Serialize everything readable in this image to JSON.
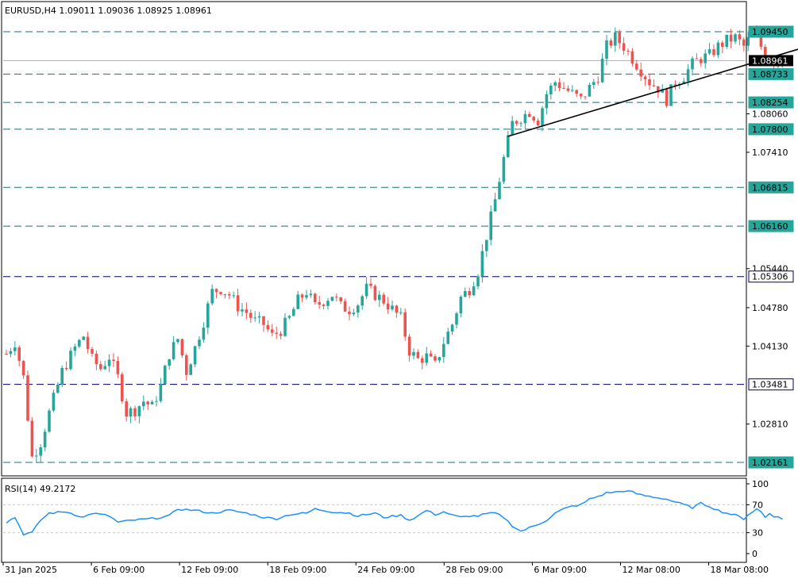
{
  "header": {
    "title": "EURUSD,H4  1.09011 1.09036 1.08925 1.08961"
  },
  "rsi_header": {
    "title": "RSI(14) 49.2172"
  },
  "colors": {
    "bull": "#26a69a",
    "bear": "#ef5350",
    "level_line": "#1a6e84",
    "support_line": "#000066",
    "badge_fill": "#26a69a",
    "current_fill": "#000000",
    "rsi_line": "#1e90ff"
  },
  "chart_data": [
    {
      "type": "candlestick",
      "symbol": "EURUSD",
      "timeframe": "H4",
      "ohlc_last": {
        "open": 1.09011,
        "high": 1.09036,
        "low": 1.08925,
        "close": 1.08961
      },
      "ylim": [
        1.0195,
        1.1
      ],
      "y_ticks": [
        "1.09450",
        "1.08961",
        "1.08733",
        "1.08254",
        "1.08060",
        "1.07800",
        "1.07410",
        "1.06815",
        "1.06160",
        "1.05440",
        "1.05306",
        "1.04780",
        "1.04130",
        "1.03481",
        "1.02810",
        "1.02161"
      ],
      "x_ticks": [
        "31 Jan 2025",
        "6 Feb 09:00",
        "12 Feb 09:00",
        "18 Feb 09:00",
        "24 Feb 09:00",
        "28 Feb 09:00",
        "6 Mar 09:00",
        "12 Mar 08:00",
        "18 Mar 08:00"
      ],
      "levels": [
        {
          "price": 1.0945,
          "label": "1.09450",
          "style": "level"
        },
        {
          "price": 1.08733,
          "label": "1.08733",
          "style": "level"
        },
        {
          "price": 1.08254,
          "label": "1.08254",
          "style": "level"
        },
        {
          "price": 1.078,
          "label": "1.07800",
          "style": "level"
        },
        {
          "price": 1.06815,
          "label": "1.06815",
          "style": "level"
        },
        {
          "price": 1.0616,
          "label": "1.06160",
          "style": "level"
        },
        {
          "price": 1.05306,
          "label": "1.05306",
          "style": "support"
        },
        {
          "price": 1.03481,
          "label": "1.03481",
          "style": "support"
        },
        {
          "price": 1.02161,
          "label": "1.02161",
          "style": "level"
        }
      ],
      "current_price": {
        "price": 1.08961,
        "label": "1.08961"
      },
      "trendline": {
        "from": {
          "index": 117,
          "price": 1.0768
        },
        "to": {
          "index": 182,
          "price": 1.0917
        }
      },
      "candle_count": 182
    },
    {
      "type": "line",
      "name": "RSI(14)",
      "value": 49.2172,
      "ylim": [
        0,
        100
      ],
      "y_ticks": [
        "100",
        "70",
        "30",
        "0"
      ],
      "guide_levels": [
        70,
        30
      ],
      "anchors": [
        [
          0,
          45
        ],
        [
          2,
          52
        ],
        [
          4,
          28
        ],
        [
          6,
          30
        ],
        [
          8,
          48
        ],
        [
          10,
          58
        ],
        [
          14,
          60
        ],
        [
          18,
          52
        ],
        [
          20,
          58
        ],
        [
          24,
          54
        ],
        [
          26,
          45
        ],
        [
          30,
          48
        ],
        [
          34,
          50
        ],
        [
          38,
          54
        ],
        [
          40,
          64
        ],
        [
          44,
          62
        ],
        [
          48,
          58
        ],
        [
          52,
          62
        ],
        [
          56,
          58
        ],
        [
          60,
          52
        ],
        [
          63,
          50
        ],
        [
          66,
          56
        ],
        [
          70,
          58
        ],
        [
          72,
          64
        ],
        [
          76,
          60
        ],
        [
          80,
          58
        ],
        [
          82,
          54
        ],
        [
          86,
          58
        ],
        [
          88,
          52
        ],
        [
          92,
          55
        ],
        [
          94,
          48
        ],
        [
          96,
          54
        ],
        [
          98,
          62
        ],
        [
          100,
          56
        ],
        [
          102,
          60
        ],
        [
          104,
          55
        ],
        [
          106,
          52
        ],
        [
          108,
          54
        ],
        [
          110,
          54
        ],
        [
          112,
          57
        ],
        [
          114,
          58
        ],
        [
          116,
          52
        ],
        [
          118,
          40
        ],
        [
          120,
          32
        ],
        [
          122,
          37
        ],
        [
          124,
          42
        ],
        [
          126,
          48
        ],
        [
          128,
          58
        ],
        [
          130,
          64
        ],
        [
          132,
          68
        ],
        [
          134,
          70
        ],
        [
          136,
          78
        ],
        [
          138,
          82
        ],
        [
          140,
          87
        ],
        [
          142,
          88
        ],
        [
          144,
          90
        ],
        [
          146,
          88
        ],
        [
          148,
          84
        ],
        [
          150,
          82
        ],
        [
          152,
          80
        ],
        [
          154,
          78
        ],
        [
          156,
          74
        ],
        [
          158,
          70
        ],
        [
          160,
          66
        ],
        [
          162,
          72
        ],
        [
          164,
          68
        ],
        [
          166,
          62
        ],
        [
          168,
          58
        ],
        [
          170,
          55
        ],
        [
          172,
          50
        ],
        [
          173,
          56
        ],
        [
          174,
          60
        ],
        [
          175,
          64
        ],
        [
          176,
          60
        ],
        [
          177,
          52
        ],
        [
          178,
          58
        ],
        [
          179,
          54
        ],
        [
          180,
          52
        ],
        [
          181,
          49.2
        ]
      ]
    }
  ]
}
